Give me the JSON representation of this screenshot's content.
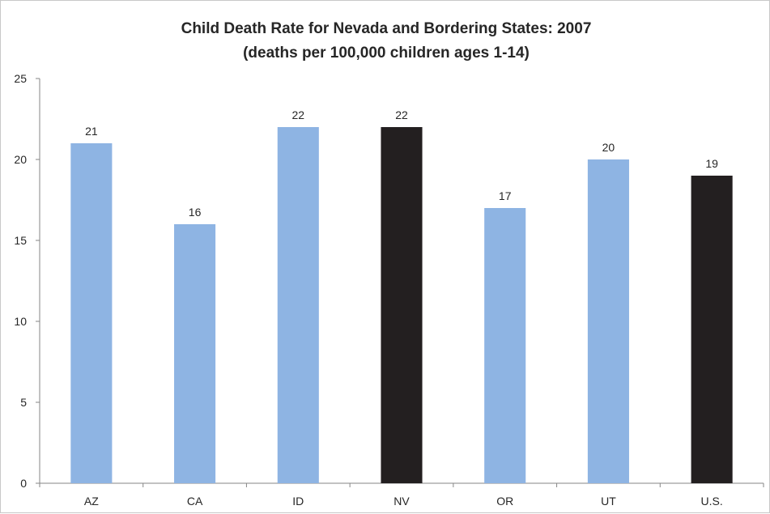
{
  "chart_data": {
    "type": "bar",
    "title": "Child Death Rate for Nevada and Bordering States: 2007",
    "subtitle": "(deaths per 100,000 children ages 1-14)",
    "xlabel": "",
    "ylabel": "",
    "categories": [
      "AZ",
      "CA",
      "ID",
      "NV",
      "OR",
      "UT",
      "U.S."
    ],
    "values": [
      21,
      16,
      22,
      22,
      17,
      20,
      19
    ],
    "bar_colors": [
      "#8eb4e3",
      "#8eb4e3",
      "#8eb4e3",
      "#231f20",
      "#8eb4e3",
      "#8eb4e3",
      "#231f20"
    ],
    "ylim": [
      0,
      25
    ],
    "yticks": [
      0,
      5,
      10,
      15,
      20,
      25
    ],
    "grid": false,
    "legend": "none",
    "data_labels": true
  }
}
